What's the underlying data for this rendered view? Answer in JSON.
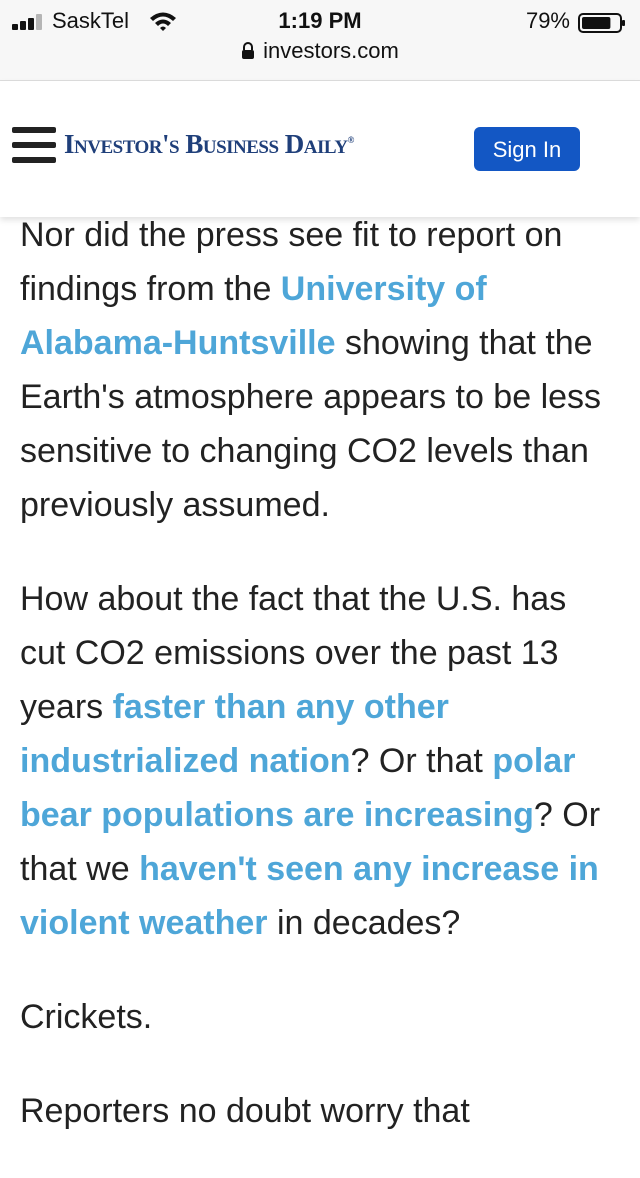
{
  "status_bar": {
    "carrier": "SaskTel",
    "time": "1:19 PM",
    "battery_percent": "79%",
    "battery_level": 0.79,
    "signal_bars": 3,
    "url": "investors.com",
    "icons": [
      "signal-icon",
      "wifi-icon",
      "lock-icon",
      "battery-icon"
    ]
  },
  "header": {
    "logo_text": "Investor's Business Daily",
    "sign_in_label": "Sign In",
    "colors": {
      "logo": "#1f3f7a",
      "button": "#1357c4",
      "link": "#4ea6d8"
    }
  },
  "article": {
    "p1": {
      "t1": "Nor did the press see fit to report on findings from the ",
      "link1": "University of Alabama-Huntsville",
      "t2": " showing that the Earth's atmosphere appears to be less sensitive to changing CO2 levels than previously assumed."
    },
    "p2": {
      "t1": "How about the fact that the U.S. has cut CO2 emissions over the past 13 years ",
      "link1": "faster than any other industrialized nation",
      "t2": "? Or that ",
      "link2": "polar bear populations are increasing",
      "t3": "? Or that we ",
      "link3": "haven't seen any increase in violent weather",
      "t4": " in decades?"
    },
    "p3": "Crickets.",
    "p4": "Reporters no doubt worry that"
  }
}
